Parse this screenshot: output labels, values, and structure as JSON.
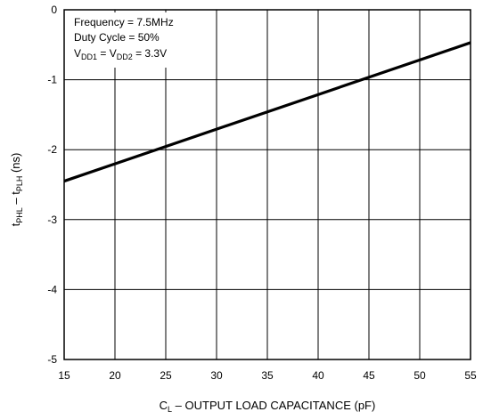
{
  "chart_data": {
    "type": "line",
    "xlabel": {
      "main": "C",
      "sub": "L",
      "rest": " – OUTPUT LOAD CAPACITANCE (pF)"
    },
    "ylabel": {
      "p1": "t",
      "s1": "PHL",
      "p2": " – t",
      "s2": "PLH",
      "p3": " (ns)"
    },
    "xlim": [
      15,
      55
    ],
    "ylim": [
      -5,
      0
    ],
    "xticks": [
      "15",
      "20",
      "25",
      "30",
      "35",
      "40",
      "45",
      "50",
      "55"
    ],
    "yticks": [
      "0",
      "-1",
      "-2",
      "-3",
      "-4",
      "-5"
    ],
    "grid": true,
    "series": [
      {
        "x": [
          15,
          55
        ],
        "y": [
          -2.45,
          -0.47
        ]
      }
    ],
    "annotations": {
      "line1": "Frequency = 7.5MHz",
      "line2": "Duty Cycle = 50%",
      "line3": {
        "a": "V",
        "a_sub": "DD1",
        "b": " = V",
        "b_sub": "DD2",
        "c": " = 3.3V"
      }
    }
  }
}
